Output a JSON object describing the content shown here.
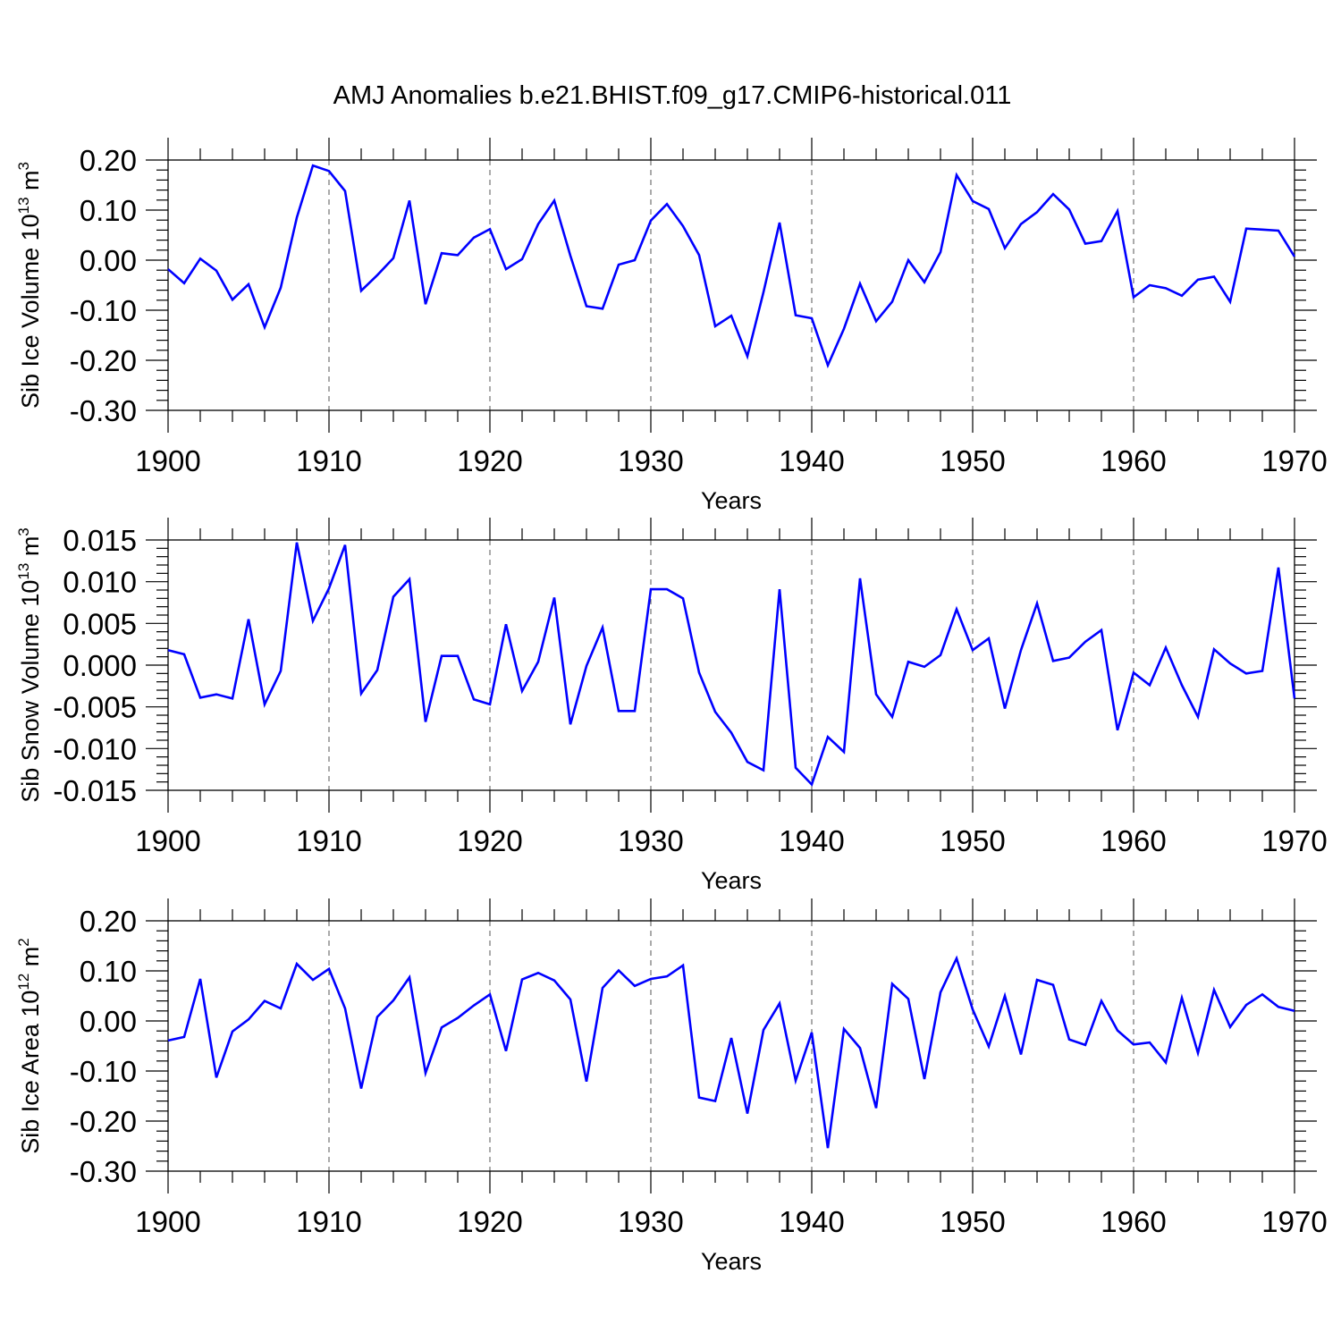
{
  "title": "AMJ Anomalies b.e21.BHIST.f09_g17.CMIP6-historical.011",
  "colors": {
    "line": "#0000ff",
    "axis": "#000000",
    "grid": "#555555"
  },
  "chart_data": [
    {
      "type": "line",
      "name": "sib-ice-volume",
      "ylabel_main": "Sib Ice Volume 10",
      "ylabel_sup": "13",
      "ylabel_unit": " m",
      "ylabel_unit_sup": "3",
      "xlabel": "Years",
      "xlim": [
        1900,
        1970
      ],
      "ylim": [
        -0.3,
        0.2
      ],
      "yticks": [
        -0.3,
        -0.2,
        -0.1,
        0.0,
        0.1,
        0.2
      ],
      "ytick_labels": [
        "-0.30",
        "-0.20",
        "-0.10",
        "0.00",
        "0.10",
        "0.20"
      ],
      "yminor_step": 0.02,
      "xticks": [
        1900,
        1910,
        1920,
        1930,
        1940,
        1950,
        1960,
        1970
      ],
      "xtick_labels": [
        "1900",
        "1910",
        "1920",
        "1930",
        "1940",
        "1950",
        "1960",
        "1970"
      ],
      "grid_x": [
        1910,
        1920,
        1930,
        1940,
        1950,
        1960
      ],
      "x_start": 1900,
      "values": [
        -0.018,
        -0.046,
        0.003,
        -0.021,
        -0.079,
        -0.048,
        -0.134,
        -0.055,
        0.085,
        0.189,
        0.178,
        0.138,
        -0.061,
        -0.03,
        0.004,
        0.119,
        -0.088,
        0.014,
        0.01,
        0.045,
        0.062,
        -0.018,
        0.002,
        0.072,
        0.119,
        0.009,
        -0.092,
        -0.097,
        -0.009,
        0.0,
        0.079,
        0.112,
        0.068,
        0.01,
        -0.132,
        -0.111,
        -0.192,
        -0.064,
        0.075,
        -0.11,
        -0.116,
        -0.21,
        -0.137,
        -0.047,
        -0.122,
        -0.083,
        0.0,
        -0.044,
        0.016,
        0.17,
        0.118,
        0.102,
        0.024,
        0.072,
        0.096,
        0.132,
        0.101,
        0.033,
        0.038,
        0.098,
        -0.074,
        -0.05,
        -0.056,
        -0.071,
        -0.039,
        -0.033,
        -0.083,
        0.063,
        0.061,
        0.059,
        0.007
      ]
    },
    {
      "type": "line",
      "name": "sib-snow-volume",
      "ylabel_main": "Sib Snow Volume 10",
      "ylabel_sup": "13",
      "ylabel_unit": " m",
      "ylabel_unit_sup": "3",
      "xlabel": "Years",
      "xlim": [
        1900,
        1970
      ],
      "ylim": [
        -0.015,
        0.015
      ],
      "yticks": [
        -0.015,
        -0.01,
        -0.005,
        0.0,
        0.005,
        0.01,
        0.015
      ],
      "ytick_labels": [
        "-0.015",
        "-0.010",
        "-0.005",
        "0.000",
        "0.005",
        "0.010",
        "0.015"
      ],
      "yminor_step": 0.001,
      "xticks": [
        1900,
        1910,
        1920,
        1930,
        1940,
        1950,
        1960,
        1970
      ],
      "xtick_labels": [
        "1900",
        "1910",
        "1920",
        "1930",
        "1940",
        "1950",
        "1960",
        "1970"
      ],
      "grid_x": [
        1910,
        1920,
        1930,
        1940,
        1950,
        1960
      ],
      "x_start": 1900,
      "values": [
        0.0018,
        0.0013,
        -0.0039,
        -0.0035,
        -0.004,
        0.0055,
        -0.0047,
        -0.0007,
        0.0147,
        0.0053,
        0.0092,
        0.0144,
        -0.0034,
        -0.0006,
        0.0082,
        0.0103,
        -0.0068,
        0.0011,
        0.0011,
        -0.0041,
        -0.0047,
        0.0049,
        -0.0031,
        0.0004,
        0.0081,
        -0.0071,
        -0.0001,
        0.0045,
        -0.0055,
        -0.0055,
        0.0091,
        0.0091,
        0.008,
        -0.0009,
        -0.0056,
        -0.0081,
        -0.0116,
        -0.0126,
        0.0091,
        -0.0123,
        -0.0143,
        -0.0086,
        -0.0104,
        0.0104,
        -0.0035,
        -0.0062,
        0.0004,
        -0.0002,
        0.0012,
        0.0067,
        0.0018,
        0.0032,
        -0.0052,
        0.0018,
        0.0074,
        0.0005,
        0.0009,
        0.0028,
        0.0042,
        -0.0078,
        -0.0009,
        -0.0024,
        0.0021,
        -0.0024,
        -0.0062,
        0.0019,
        0.0002,
        -0.001,
        -0.0007,
        0.0117,
        -0.004
      ]
    },
    {
      "type": "line",
      "name": "sib-ice-area",
      "ylabel_main": "Sib Ice Area 10",
      "ylabel_sup": "12",
      "ylabel_unit": " m",
      "ylabel_unit_sup": "2",
      "xlabel": "Years",
      "xlim": [
        1900,
        1970
      ],
      "ylim": [
        -0.3,
        0.2
      ],
      "yticks": [
        -0.3,
        -0.2,
        -0.1,
        0.0,
        0.1,
        0.2
      ],
      "ytick_labels": [
        "-0.30",
        "-0.20",
        "-0.10",
        "0.00",
        "0.10",
        "0.20"
      ],
      "yminor_step": 0.02,
      "xticks": [
        1900,
        1910,
        1920,
        1930,
        1940,
        1950,
        1960,
        1970
      ],
      "xtick_labels": [
        "1900",
        "1910",
        "1920",
        "1930",
        "1940",
        "1950",
        "1960",
        "1970"
      ],
      "grid_x": [
        1910,
        1920,
        1930,
        1940,
        1950,
        1960
      ],
      "x_start": 1900,
      "values": [
        -0.039,
        -0.032,
        0.084,
        -0.113,
        -0.021,
        0.003,
        0.04,
        0.025,
        0.114,
        0.082,
        0.104,
        0.025,
        -0.135,
        0.008,
        0.041,
        0.087,
        -0.104,
        -0.013,
        0.006,
        0.031,
        0.053,
        -0.06,
        0.083,
        0.096,
        0.081,
        0.043,
        -0.121,
        0.066,
        0.101,
        0.07,
        0.084,
        0.089,
        0.111,
        -0.153,
        -0.16,
        -0.034,
        -0.185,
        -0.018,
        0.035,
        -0.119,
        -0.023,
        -0.254,
        -0.016,
        -0.054,
        -0.174,
        0.074,
        0.044,
        -0.116,
        0.057,
        0.125,
        0.023,
        -0.051,
        0.05,
        -0.067,
        0.082,
        0.072,
        -0.037,
        -0.048,
        0.04,
        -0.019,
        -0.047,
        -0.043,
        -0.083,
        0.046,
        -0.064,
        0.062,
        -0.012,
        0.032,
        0.053,
        0.028,
        0.02
      ]
    }
  ]
}
